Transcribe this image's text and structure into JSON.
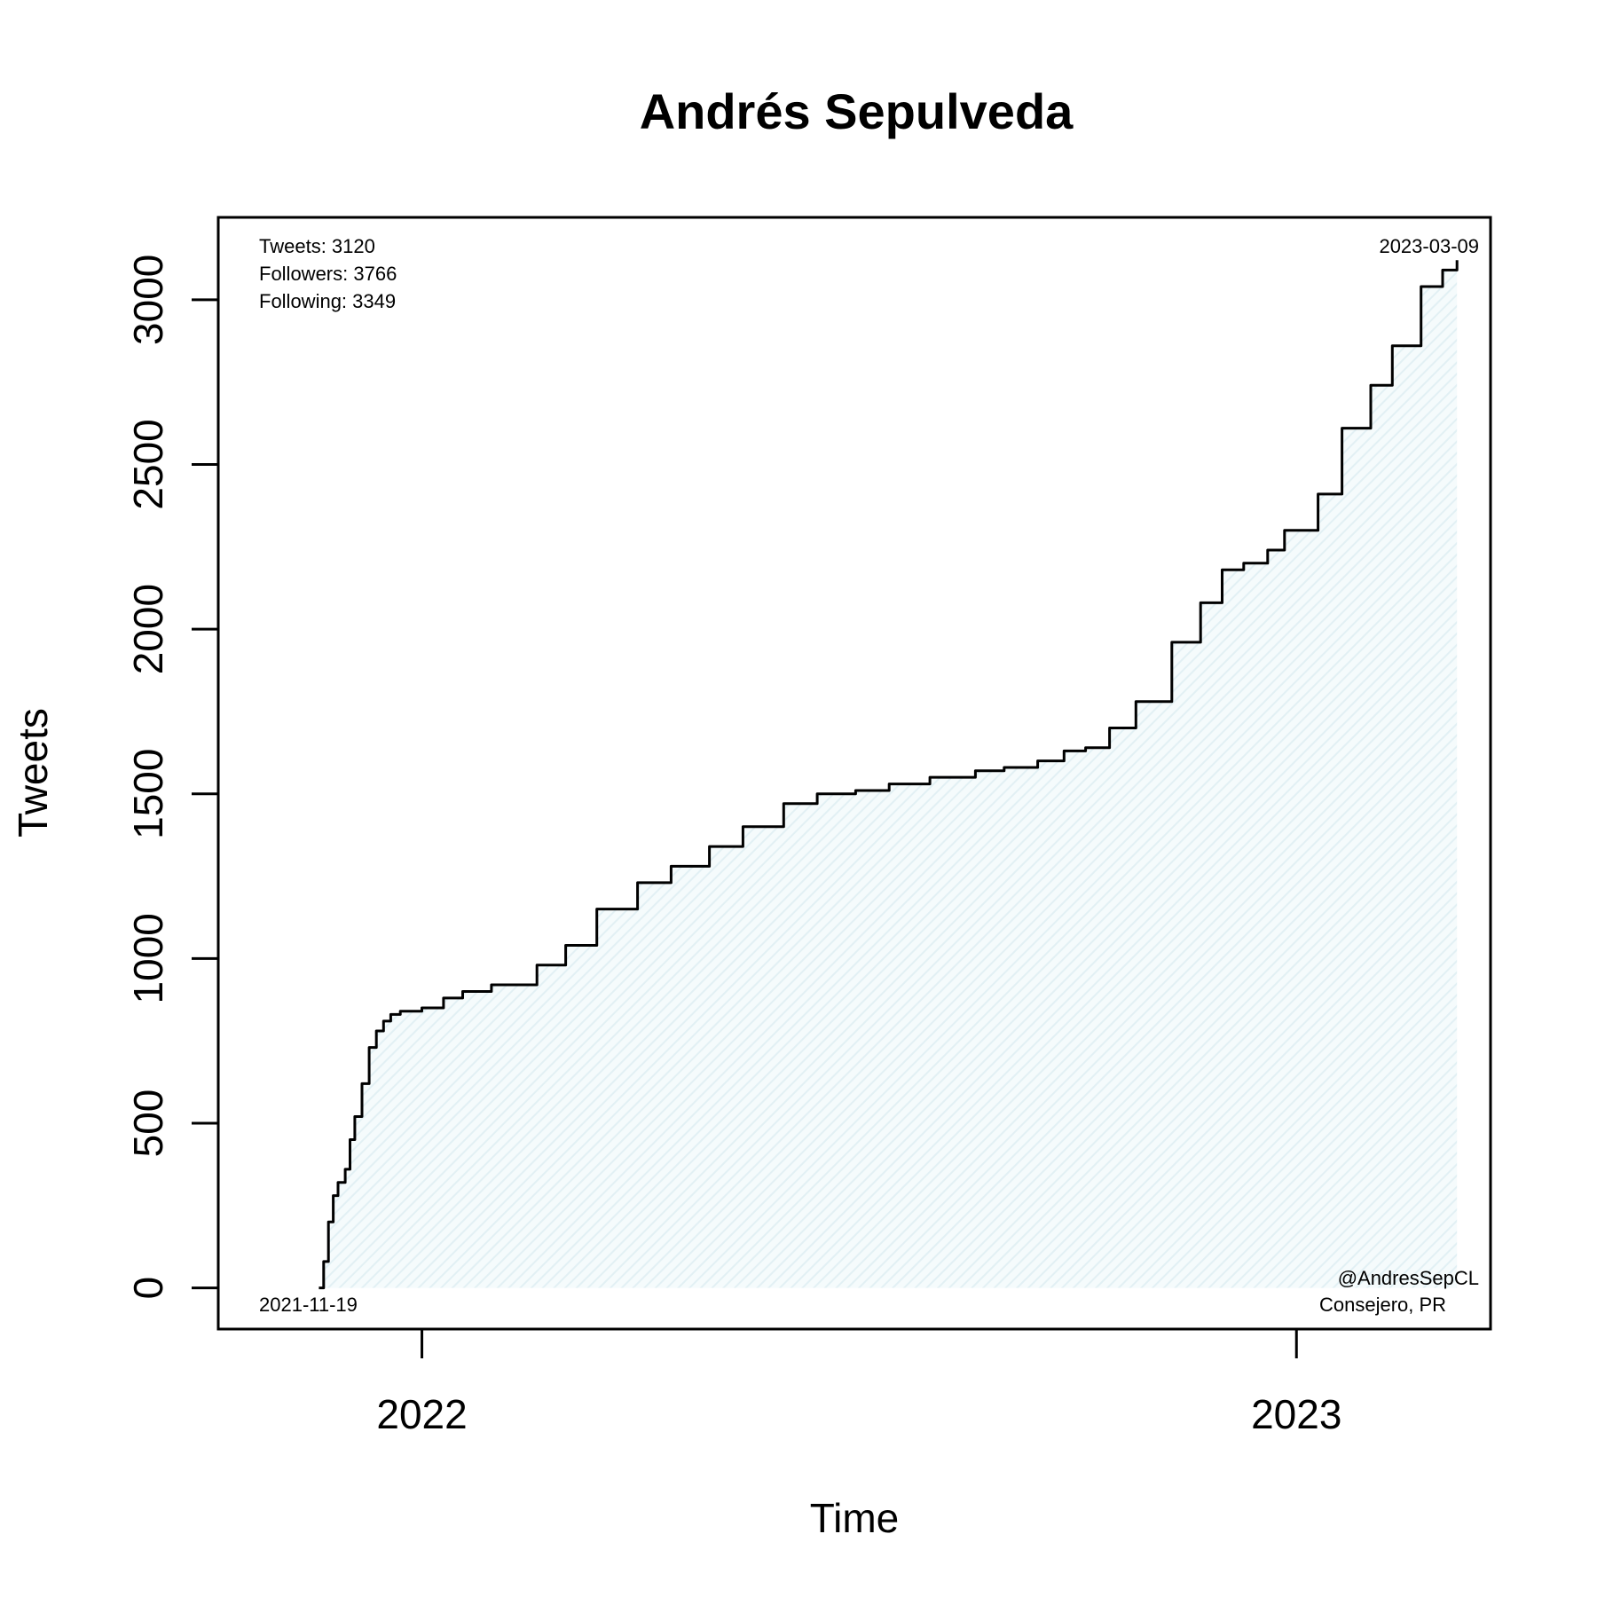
{
  "chart_data": {
    "type": "area",
    "title": "Andrés Sepulveda",
    "xlabel": "Time",
    "ylabel": "Tweets",
    "x_ticks": [
      {
        "label": "2022",
        "date": "2022-01-01"
      },
      {
        "label": "2023",
        "date": "2023-01-01"
      }
    ],
    "y_ticks": [
      0,
      500,
      1000,
      1500,
      2000,
      2500,
      3000
    ],
    "xlim": [
      "2021-10-08",
      "2023-03-23"
    ],
    "ylim": [
      -125,
      3250
    ],
    "grid": false,
    "legend": "none",
    "series": [
      {
        "color": "#000000",
        "fill": "#e8f4f8",
        "x": [
          "2021-11-19",
          "2021-11-21",
          "2021-11-23",
          "2021-11-25",
          "2021-11-27",
          "2021-11-30",
          "2021-12-02",
          "2021-12-04",
          "2021-12-07",
          "2021-12-10",
          "2021-12-13",
          "2021-12-16",
          "2021-12-19",
          "2021-12-23",
          "2022-01-01",
          "2022-01-10",
          "2022-01-18",
          "2022-01-30",
          "2022-02-18",
          "2022-03-02",
          "2022-03-15",
          "2022-04-01",
          "2022-04-15",
          "2022-05-01",
          "2022-05-15",
          "2022-06-01",
          "2022-06-15",
          "2022-07-01",
          "2022-07-15",
          "2022-08-01",
          "2022-08-20",
          "2022-09-01",
          "2022-09-15",
          "2022-09-26",
          "2022-10-05",
          "2022-10-15",
          "2022-10-26",
          "2022-11-10",
          "2022-11-22",
          "2022-12-01",
          "2022-12-10",
          "2022-12-20",
          "2022-12-27",
          "2023-01-10",
          "2023-01-20",
          "2023-02-01",
          "2023-02-10",
          "2023-02-22",
          "2023-03-03",
          "2023-03-09"
        ],
        "y": [
          0,
          80,
          200,
          280,
          320,
          360,
          450,
          520,
          620,
          730,
          780,
          810,
          830,
          840,
          850,
          880,
          900,
          920,
          980,
          1040,
          1150,
          1230,
          1280,
          1340,
          1400,
          1470,
          1500,
          1510,
          1530,
          1550,
          1570,
          1580,
          1600,
          1630,
          1640,
          1700,
          1780,
          1960,
          2080,
          2180,
          2200,
          2240,
          2300,
          2410,
          2610,
          2740,
          2860,
          3040,
          3090,
          3120
        ]
      }
    ],
    "annotations": {
      "stats": [
        "Tweets: 3120",
        "Followers: 3766",
        "Following: 3349"
      ],
      "end_date": "2023-03-09",
      "start_date": "2021-11-19",
      "handle": "@AndresSepCL",
      "role": "Consejero, PR"
    }
  }
}
